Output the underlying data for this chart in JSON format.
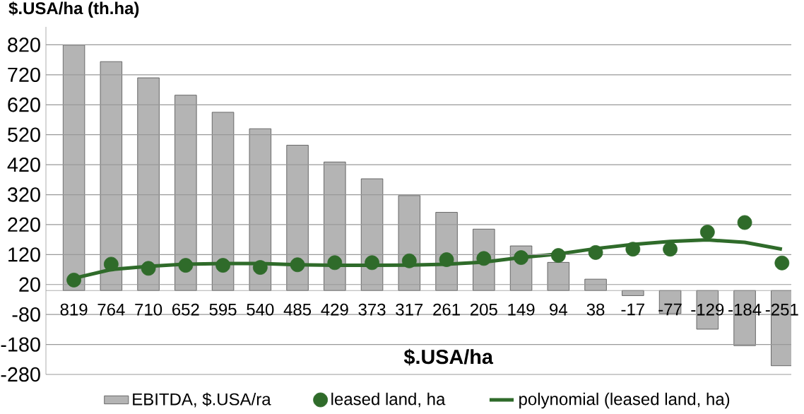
{
  "chart_data": {
    "type": "bar",
    "ylabel": "$.USA/ha (th.ha)",
    "xlabel": "$.USA/ha",
    "categories": [
      "819",
      "764",
      "710",
      "652",
      "595",
      "540",
      "485",
      "429",
      "373",
      "317",
      "261",
      "205",
      "149",
      "94",
      "38",
      "-17",
      "-77",
      "-129",
      "-184",
      "-251"
    ],
    "series": [
      {
        "name": "EBITDA, $.USA/ra",
        "color": "#b4b4b4",
        "values": [
          819,
          764,
          710,
          652,
          595,
          540,
          485,
          429,
          373,
          317,
          261,
          205,
          149,
          94,
          38,
          -17,
          -77,
          -129,
          -184,
          -251
        ]
      },
      {
        "name": "leased land, ha",
        "type": "scatter",
        "marker": "circle",
        "color": "#2f6b2a",
        "values": [
          35,
          88,
          74,
          84,
          84,
          77,
          86,
          93,
          93,
          99,
          103,
          107,
          110,
          117,
          127,
          138,
          138,
          195,
          227,
          92
        ]
      },
      {
        "name": "polynomial (leased land, ha)",
        "type": "line",
        "marker": "none",
        "color": "#2f6b2a",
        "values": [
          41,
          70,
          81,
          88,
          90,
          90,
          86,
          84,
          84,
          85,
          88,
          95,
          110,
          122,
          140,
          154,
          164,
          169,
          161,
          138
        ]
      }
    ],
    "ylim": [
      -280,
      880
    ],
    "yticks": [
      -280,
      -180,
      -80,
      20,
      120,
      220,
      320,
      420,
      520,
      620,
      720,
      820
    ],
    "grid": "y",
    "legend": "bottom"
  }
}
